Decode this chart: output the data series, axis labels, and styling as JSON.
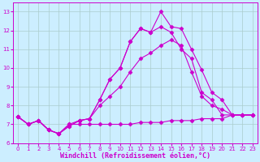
{
  "background_color": "#cceeff",
  "line_color": "#cc00cc",
  "grid_color": "#aacccc",
  "xlabel": "Windchill (Refroidissement éolien,°C)",
  "xlim": [
    -0.5,
    23.5
  ],
  "ylim": [
    6,
    13.5
  ],
  "xticks": [
    0,
    1,
    2,
    3,
    4,
    5,
    6,
    7,
    8,
    9,
    10,
    11,
    12,
    13,
    14,
    15,
    16,
    17,
    18,
    19,
    20,
    21,
    22,
    23
  ],
  "yticks": [
    6,
    7,
    8,
    9,
    10,
    11,
    12,
    13
  ],
  "lines": [
    [
      7.4,
      7.0,
      7.2,
      6.7,
      6.5,
      6.9,
      7.2,
      7.3,
      8.3,
      9.4,
      10.0,
      11.4,
      12.1,
      11.9,
      13.0,
      12.2,
      12.1,
      11.0,
      9.9,
      8.7,
      8.3,
      7.5,
      7.5,
      7.5
    ],
    [
      7.4,
      7.0,
      7.2,
      6.7,
      6.5,
      6.9,
      7.2,
      7.3,
      8.3,
      9.4,
      10.0,
      11.4,
      12.1,
      11.9,
      12.2,
      11.9,
      11.0,
      10.5,
      8.7,
      8.3,
      7.5,
      7.5,
      7.5,
      7.5
    ],
    [
      7.4,
      7.0,
      7.2,
      6.7,
      6.5,
      7.0,
      7.2,
      7.3,
      8.0,
      8.5,
      9.0,
      9.8,
      10.5,
      10.8,
      11.2,
      11.5,
      11.2,
      9.8,
      8.5,
      8.0,
      7.8,
      7.5,
      7.5,
      7.5
    ],
    [
      7.4,
      7.0,
      7.2,
      6.7,
      6.5,
      7.0,
      7.0,
      7.0,
      7.0,
      7.0,
      7.0,
      7.0,
      7.1,
      7.1,
      7.1,
      7.2,
      7.2,
      7.2,
      7.3,
      7.3,
      7.3,
      7.5,
      7.5,
      7.5
    ]
  ],
  "marker": "D",
  "markersize": 2.5,
  "linewidth": 0.8,
  "tick_fontsize": 5,
  "label_fontsize": 6
}
